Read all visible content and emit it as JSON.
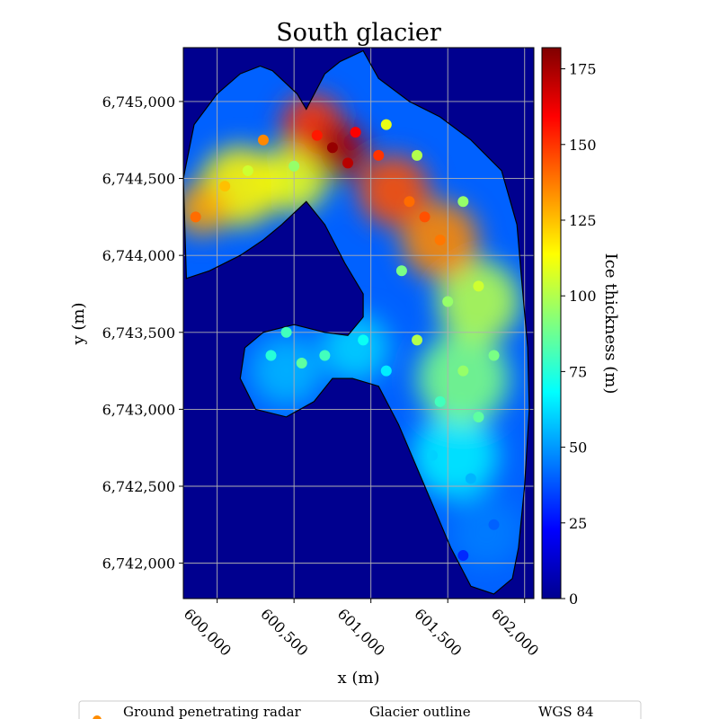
{
  "chart_data": {
    "type": "heatmap",
    "title": "South glacier",
    "xlabel": "x (m)",
    "ylabel": "y (m)",
    "xlim": [
      599780,
      602060
    ],
    "ylim": [
      6741770,
      6745350
    ],
    "xticks": [
      {
        "value": 600000,
        "label": "600,000"
      },
      {
        "value": 600500,
        "label": "600,500"
      },
      {
        "value": 601000,
        "label": "601,000"
      },
      {
        "value": 601500,
        "label": "601,500"
      },
      {
        "value": 602000,
        "label": "602,000"
      }
    ],
    "yticks": [
      {
        "value": 6742000,
        "label": "6,742,000"
      },
      {
        "value": 6742500,
        "label": "6,742,500"
      },
      {
        "value": 6743000,
        "label": "6,743,000"
      },
      {
        "value": 6743500,
        "label": "6,743,500"
      },
      {
        "value": 6744000,
        "label": "6,744,000"
      },
      {
        "value": 6744500,
        "label": "6,744,500"
      },
      {
        "value": 6745000,
        "label": "6,745,000"
      }
    ],
    "grid": true,
    "colormap": "jet",
    "colorbar": {
      "label": "Ice thickness (m)",
      "range": [
        0,
        182
      ],
      "ticks": [
        0,
        25,
        50,
        75,
        100,
        125,
        150,
        175
      ]
    },
    "glacier_outline": [
      [
        600280,
        6745230
      ],
      [
        600360,
        6745200
      ],
      [
        600520,
        6745050
      ],
      [
        600580,
        6744950
      ],
      [
        600700,
        6745180
      ],
      [
        600800,
        6745260
      ],
      [
        600950,
        6745330
      ],
      [
        601050,
        6745150
      ],
      [
        601250,
        6745000
      ],
      [
        601450,
        6744900
      ],
      [
        601650,
        6744750
      ],
      [
        601850,
        6744550
      ],
      [
        601950,
        6744200
      ],
      [
        601980,
        6743850
      ],
      [
        602020,
        6743400
      ],
      [
        602030,
        6743000
      ],
      [
        602000,
        6742500
      ],
      [
        601960,
        6742100
      ],
      [
        601920,
        6741900
      ],
      [
        601800,
        6741800
      ],
      [
        601650,
        6741850
      ],
      [
        601520,
        6742100
      ],
      [
        601350,
        6742500
      ],
      [
        601180,
        6742900
      ],
      [
        601050,
        6743150
      ],
      [
        600880,
        6743200
      ],
      [
        600750,
        6743200
      ],
      [
        600630,
        6743050
      ],
      [
        600450,
        6742950
      ],
      [
        600250,
        6743000
      ],
      [
        600150,
        6743200
      ],
      [
        600180,
        6743400
      ],
      [
        600300,
        6743500
      ],
      [
        600500,
        6743550
      ],
      [
        600700,
        6743500
      ],
      [
        600850,
        6743480
      ],
      [
        600950,
        6743600
      ],
      [
        600950,
        6743750
      ],
      [
        600830,
        6743950
      ],
      [
        600700,
        6744200
      ],
      [
        600580,
        6744350
      ],
      [
        600420,
        6744200
      ],
      [
        600300,
        6744100
      ],
      [
        600150,
        6744000
      ],
      [
        599950,
        6743900
      ],
      [
        599800,
        6743850
      ],
      [
        599780,
        6744500
      ],
      [
        599850,
        6744850
      ],
      [
        600000,
        6745050
      ],
      [
        600150,
        6745180
      ]
    ],
    "thickness_field": [
      {
        "x": 600800,
        "y": 6744680,
        "thickness": 175,
        "radius": 180
      },
      {
        "x": 600620,
        "y": 6744850,
        "thickness": 150,
        "radius": 200
      },
      {
        "x": 601150,
        "y": 6744420,
        "thickness": 145,
        "radius": 230
      },
      {
        "x": 601450,
        "y": 6744100,
        "thickness": 135,
        "radius": 250
      },
      {
        "x": 599900,
        "y": 6744300,
        "thickness": 130,
        "radius": 170
      },
      {
        "x": 600150,
        "y": 6744450,
        "thickness": 115,
        "radius": 260
      },
      {
        "x": 600500,
        "y": 6744500,
        "thickness": 110,
        "radius": 220
      },
      {
        "x": 601700,
        "y": 6743700,
        "thickness": 100,
        "radius": 270
      },
      {
        "x": 601600,
        "y": 6743200,
        "thickness": 90,
        "radius": 300
      },
      {
        "x": 601550,
        "y": 6742700,
        "thickness": 65,
        "radius": 280
      },
      {
        "x": 601750,
        "y": 6742200,
        "thickness": 45,
        "radius": 230
      },
      {
        "x": 600450,
        "y": 6743250,
        "thickness": 55,
        "radius": 230
      },
      {
        "x": 600900,
        "y": 6743400,
        "thickness": 60,
        "radius": 220
      }
    ],
    "gpr_points": [
      {
        "x": 600750,
        "y": 6744700,
        "thickness": 178
      },
      {
        "x": 600850,
        "y": 6744600,
        "thickness": 172
      },
      {
        "x": 600900,
        "y": 6744800,
        "thickness": 160
      },
      {
        "x": 600650,
        "y": 6744780,
        "thickness": 155
      },
      {
        "x": 601050,
        "y": 6744650,
        "thickness": 150
      },
      {
        "x": 601250,
        "y": 6744350,
        "thickness": 140
      },
      {
        "x": 601450,
        "y": 6744100,
        "thickness": 138
      },
      {
        "x": 601350,
        "y": 6744250,
        "thickness": 145
      },
      {
        "x": 600300,
        "y": 6744750,
        "thickness": 135
      },
      {
        "x": 600050,
        "y": 6744450,
        "thickness": 125
      },
      {
        "x": 599860,
        "y": 6744250,
        "thickness": 140
      },
      {
        "x": 600200,
        "y": 6744550,
        "thickness": 105
      },
      {
        "x": 600500,
        "y": 6744580,
        "thickness": 95
      },
      {
        "x": 601100,
        "y": 6744850,
        "thickness": 110
      },
      {
        "x": 601300,
        "y": 6744650,
        "thickness": 100
      },
      {
        "x": 601600,
        "y": 6744350,
        "thickness": 95
      },
      {
        "x": 601700,
        "y": 6743800,
        "thickness": 105
      },
      {
        "x": 601500,
        "y": 6743700,
        "thickness": 95
      },
      {
        "x": 601200,
        "y": 6743900,
        "thickness": 90
      },
      {
        "x": 601300,
        "y": 6743450,
        "thickness": 100
      },
      {
        "x": 601600,
        "y": 6743250,
        "thickness": 95
      },
      {
        "x": 601800,
        "y": 6743350,
        "thickness": 90
      },
      {
        "x": 601450,
        "y": 6743050,
        "thickness": 80
      },
      {
        "x": 601700,
        "y": 6742950,
        "thickness": 85
      },
      {
        "x": 601400,
        "y": 6742700,
        "thickness": 60
      },
      {
        "x": 601650,
        "y": 6742550,
        "thickness": 55
      },
      {
        "x": 601800,
        "y": 6742250,
        "thickness": 40
      },
      {
        "x": 601600,
        "y": 6742050,
        "thickness": 30
      },
      {
        "x": 601100,
        "y": 6743250,
        "thickness": 65
      },
      {
        "x": 600950,
        "y": 6743450,
        "thickness": 70
      },
      {
        "x": 600450,
        "y": 6743500,
        "thickness": 80
      },
      {
        "x": 600350,
        "y": 6743350,
        "thickness": 75
      },
      {
        "x": 600550,
        "y": 6743300,
        "thickness": 85
      },
      {
        "x": 600700,
        "y": 6743350,
        "thickness": 80
      }
    ],
    "legend": {
      "placement": "bottom",
      "entries": [
        "Ground penetrating radar",
        "Glacier outline",
        "WGS 84"
      ]
    }
  }
}
